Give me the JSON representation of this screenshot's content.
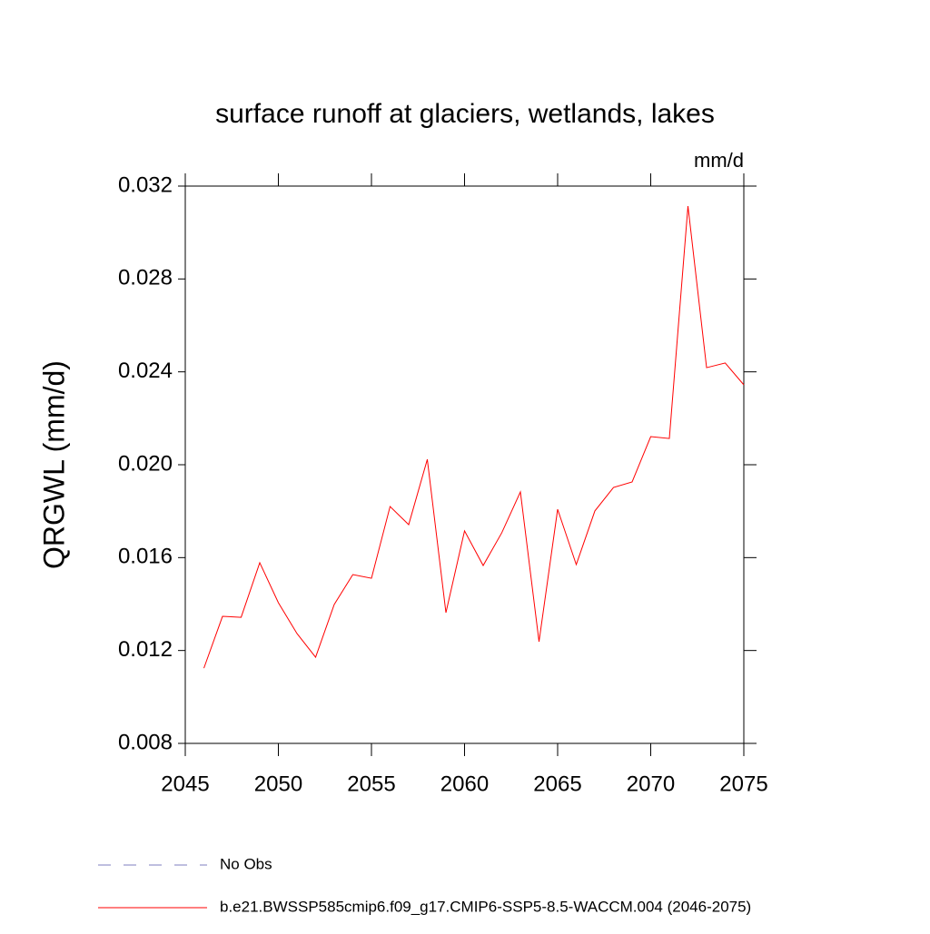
{
  "chart_data": {
    "type": "line",
    "title": "surface runoff at glaciers, wetlands, lakes",
    "units": "mm/d",
    "y_label": "QRGWL  (mm/d)",
    "x": [
      2046,
      2047,
      2048,
      2049,
      2050,
      2051,
      2052,
      2053,
      2054,
      2055,
      2056,
      2057,
      2058,
      2059,
      2060,
      2061,
      2062,
      2063,
      2064,
      2065,
      2066,
      2067,
      2068,
      2069,
      2070,
      2071,
      2072,
      2073,
      2074,
      2075
    ],
    "series": [
      {
        "name": "b.e21.BWSSP585cmip6.f09_g17.CMIP6-SSP5-8.5-WACCM.004 (2046-2075)",
        "color": "#ff0000",
        "values": [
          0.01124,
          0.01347,
          0.01343,
          0.01578,
          0.01406,
          0.01273,
          0.01171,
          0.01398,
          0.01527,
          0.01511,
          0.0182,
          0.01742,
          0.02023,
          0.01363,
          0.01715,
          0.01566,
          0.01707,
          0.01883,
          0.01238,
          0.01808,
          0.0157,
          0.01801,
          0.01902,
          0.01926,
          0.02121,
          0.02113,
          0.03114,
          0.02418,
          0.02438,
          0.02344
        ]
      }
    ],
    "reference": {
      "name": "No Obs",
      "color": "#7f7fbf"
    },
    "xlim": [
      2045,
      2075
    ],
    "xticks": [
      2045,
      2050,
      2055,
      2060,
      2065,
      2070,
      2075
    ],
    "ylim": [
      0.008,
      0.032
    ],
    "yticks": [
      0.008,
      0.012,
      0.016,
      {
        "value": 0.02,
        "label": "0.020"
      },
      0.024,
      0.028,
      0.032
    ]
  }
}
